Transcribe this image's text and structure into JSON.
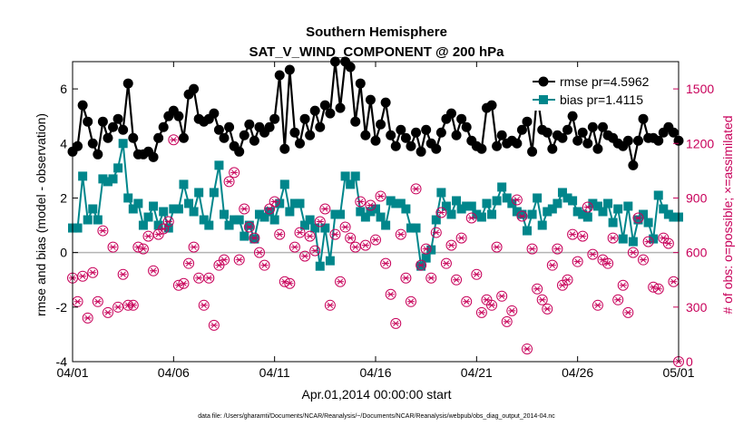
{
  "chart_data": {
    "type": "line",
    "title": "Southern Hemisphere",
    "subtitle": "SAT_V_WIND_COMPONENT @ 200 hPa",
    "xlabel": "Apr.01,2014 00:00:00 start",
    "ylabel": "rmse and bias (model - observation)",
    "y2label": "# of obs: o=possible; ×=assimilated",
    "footnote": "data file: /Users/gharamti/Documents/NCAR/Reanalysis/~/Documents/NCAR/Reanalysis/webpub/obs_diag_output_2014-04.nc",
    "x_tick_labels": [
      "04/01",
      "04/06",
      "04/11",
      "04/16",
      "04/21",
      "04/26",
      "05/01"
    ],
    "xlim": [
      0,
      30
    ],
    "ylim": [
      -4,
      7
    ],
    "y_ticks": [
      -4,
      -2,
      0,
      2,
      4,
      6
    ],
    "y2lim": [
      0,
      1650
    ],
    "y2_ticks": [
      0,
      300,
      600,
      900,
      1200,
      1500
    ],
    "grid": false,
    "legend_position": "top-right",
    "colors": {
      "rmse": "#000000",
      "bias": "#00868b",
      "obs": "#c8005a",
      "zero_line": "#b4b4b4"
    },
    "series": [
      {
        "name": "rmse pr=4.5962",
        "axis": "left",
        "x": [
          0,
          0.25,
          0.5,
          0.75,
          1,
          1.25,
          1.5,
          1.75,
          2,
          2.25,
          2.5,
          2.75,
          3,
          3.25,
          3.5,
          3.75,
          4,
          4.25,
          4.5,
          4.75,
          5,
          5.25,
          5.5,
          5.75,
          6,
          6.25,
          6.5,
          6.75,
          7,
          7.25,
          7.5,
          7.75,
          8,
          8.25,
          8.5,
          8.75,
          9,
          9.25,
          9.5,
          9.75,
          10,
          10.25,
          10.5,
          10.75,
          11,
          11.25,
          11.5,
          11.75,
          12,
          12.25,
          12.5,
          12.75,
          13,
          13.25,
          13.5,
          13.75,
          14,
          14.25,
          14.5,
          14.75,
          15,
          15.25,
          15.5,
          15.75,
          16,
          16.25,
          16.5,
          16.75,
          17,
          17.25,
          17.5,
          17.75,
          18,
          18.25,
          18.5,
          18.75,
          19,
          19.25,
          19.5,
          19.75,
          20,
          20.25,
          20.5,
          20.75,
          21,
          21.25,
          21.5,
          21.75,
          22,
          22.25,
          22.5,
          22.75,
          23,
          23.25,
          23.5,
          23.75,
          24,
          24.25,
          24.5,
          24.75,
          25,
          25.25,
          25.5,
          25.75,
          26,
          26.25,
          26.5,
          26.75,
          27,
          27.25,
          27.5,
          27.75,
          28,
          28.25,
          28.5,
          28.75,
          29,
          29.25,
          29.5,
          29.75,
          30
        ],
        "values": [
          3.7,
          3.9,
          5.4,
          4.8,
          4.0,
          3.6,
          4.8,
          4.2,
          4.6,
          4.9,
          4.5,
          6.2,
          4.2,
          3.6,
          3.6,
          3.7,
          3.5,
          4.2,
          4.6,
          5.0,
          5.2,
          5.0,
          4.2,
          5.8,
          6.0,
          4.9,
          4.8,
          4.9,
          5.1,
          4.5,
          4.2,
          4.6,
          3.9,
          3.7,
          4.3,
          4.7,
          4.1,
          4.6,
          4.4,
          4.6,
          4.9,
          6.5,
          3.8,
          6.7,
          4.4,
          4.0,
          4.9,
          4.3,
          5.2,
          4.6,
          5.4,
          5.1,
          7.0,
          5.3,
          7.0,
          6.8,
          4.8,
          6.2,
          4.3,
          5.6,
          4.1,
          4.7,
          5.5,
          4.3,
          3.9,
          4.5,
          4.2,
          3.9,
          4.4,
          3.7,
          4.5,
          4.0,
          3.8,
          4.4,
          4.9,
          5.1,
          4.3,
          4.9,
          4.6,
          4.1,
          3.9,
          3.8,
          5.3,
          5.4,
          3.9,
          4.3,
          4.0,
          4.1,
          4.0,
          4.5,
          4.8,
          3.7,
          5.8,
          4.5,
          4.4,
          3.8,
          4.3,
          4.2,
          4.5,
          5.0,
          4.1,
          4.4,
          4.0,
          4.6,
          3.8,
          4.6,
          4.3,
          4.2,
          4.0,
          3.9,
          4.1,
          3.2,
          4.1,
          4.9,
          4.2,
          4.2,
          4.1,
          4.4,
          4.6,
          4.4,
          4.1
        ]
      },
      {
        "name": "bias pr=1.4115",
        "axis": "left",
        "x": [
          0,
          0.25,
          0.5,
          0.75,
          1,
          1.25,
          1.5,
          1.75,
          2,
          2.25,
          2.5,
          2.75,
          3,
          3.25,
          3.5,
          3.75,
          4,
          4.25,
          4.5,
          4.75,
          5,
          5.25,
          5.5,
          5.75,
          6,
          6.25,
          6.5,
          6.75,
          7,
          7.25,
          7.5,
          7.75,
          8,
          8.25,
          8.5,
          8.75,
          9,
          9.25,
          9.5,
          9.75,
          10,
          10.25,
          10.5,
          10.75,
          11,
          11.25,
          11.5,
          11.75,
          12,
          12.25,
          12.5,
          12.75,
          13,
          13.25,
          13.5,
          13.75,
          14,
          14.25,
          14.5,
          14.75,
          15,
          15.25,
          15.5,
          15.75,
          16,
          16.25,
          16.5,
          16.75,
          17,
          17.25,
          17.5,
          17.75,
          18,
          18.25,
          18.5,
          18.75,
          19,
          19.25,
          19.5,
          19.75,
          20,
          20.25,
          20.5,
          20.75,
          21,
          21.25,
          21.5,
          21.75,
          22,
          22.25,
          22.5,
          22.75,
          23,
          23.25,
          23.5,
          23.75,
          24,
          24.25,
          24.5,
          24.75,
          25,
          25.25,
          25.5,
          25.75,
          26,
          26.25,
          26.5,
          26.75,
          27,
          27.25,
          27.5,
          27.75,
          28,
          28.25,
          28.5,
          28.75,
          29,
          29.25,
          29.5,
          29.75,
          30
        ],
        "values": [
          0.9,
          0.9,
          2.8,
          1.2,
          1.6,
          1.2,
          2.7,
          2.6,
          2.7,
          3.1,
          4.0,
          2.0,
          1.6,
          1.8,
          1.0,
          1.3,
          1.7,
          1.0,
          1.5,
          0.9,
          1.6,
          1.6,
          2.5,
          1.8,
          1.5,
          2.2,
          1.2,
          1.0,
          2.2,
          3.2,
          1.4,
          1.0,
          1.2,
          1.2,
          0.6,
          1.0,
          0.5,
          1.4,
          1.3,
          1.5,
          1.2,
          1.8,
          2.5,
          1.5,
          1.8,
          1.8,
          1.0,
          1.2,
          0.9,
          -0.5,
          0.9,
          -0.3,
          1.4,
          1.4,
          2.8,
          2.5,
          2.8,
          1.5,
          1.3,
          1.5,
          1.6,
          1.3,
          1.0,
          1.9,
          1.8,
          1.8,
          1.6,
          0.9,
          0.9,
          -0.5,
          -0.2,
          0.1,
          1.2,
          2.2,
          1.7,
          1.4,
          1.9,
          1.6,
          1.7,
          1.7,
          1.4,
          1.3,
          1.8,
          1.4,
          1.9,
          2.4,
          2.0,
          1.8,
          1.5,
          1.4,
          0.8,
          1.4,
          2.0,
          1.0,
          1.5,
          1.6,
          1.8,
          2.2,
          2.0,
          1.9,
          1.5,
          1.4,
          1.3,
          1.8,
          1.7,
          1.5,
          1.8,
          1.1,
          1.6,
          0.5,
          1.7,
          0.4,
          1.2,
          1.4,
          1.1,
          0.5,
          2.1,
          1.6,
          1.4,
          1.3,
          1.3
        ]
      },
      {
        "name": "# of obs",
        "axis": "right",
        "x": [
          0,
          0.25,
          0.5,
          0.75,
          1,
          1.25,
          1.5,
          1.75,
          2,
          2.25,
          2.5,
          2.75,
          3,
          3.25,
          3.5,
          3.75,
          4,
          4.25,
          4.5,
          4.75,
          5,
          5.25,
          5.5,
          5.75,
          6,
          6.25,
          6.5,
          6.75,
          7,
          7.25,
          7.5,
          7.75,
          8,
          8.25,
          8.5,
          8.75,
          9,
          9.25,
          9.5,
          9.75,
          10,
          10.25,
          10.5,
          10.75,
          11,
          11.25,
          11.5,
          11.75,
          12,
          12.25,
          12.5,
          12.75,
          13,
          13.25,
          13.5,
          13.75,
          14,
          14.25,
          14.5,
          14.75,
          15,
          15.25,
          15.5,
          15.75,
          16,
          16.25,
          16.5,
          16.75,
          17,
          17.25,
          17.5,
          17.75,
          18,
          18.25,
          18.5,
          18.75,
          19,
          19.25,
          19.5,
          19.75,
          20,
          20.25,
          20.5,
          20.75,
          21,
          21.25,
          21.5,
          21.75,
          22,
          22.25,
          22.5,
          22.75,
          23,
          23.25,
          23.5,
          23.75,
          24,
          24.25,
          24.5,
          24.75,
          25,
          25.25,
          25.5,
          25.75,
          26,
          26.25,
          26.5,
          26.75,
          27,
          27.25,
          27.5,
          27.75,
          28,
          28.25,
          28.5,
          28.75,
          29,
          29.25,
          29.5,
          29.75,
          30
        ],
        "values": [
          460,
          330,
          470,
          240,
          490,
          330,
          720,
          270,
          630,
          300,
          480,
          310,
          310,
          630,
          620,
          690,
          500,
          700,
          730,
          770,
          1220,
          420,
          430,
          540,
          630,
          460,
          310,
          460,
          200,
          530,
          560,
          990,
          1040,
          560,
          840,
          740,
          680,
          600,
          530,
          840,
          880,
          700,
          440,
          430,
          630,
          710,
          580,
          690,
          610,
          770,
          840,
          310,
          700,
          440,
          740,
          680,
          630,
          880,
          640,
          860,
          670,
          910,
          540,
          370,
          210,
          700,
          460,
          330,
          950,
          530,
          620,
          460,
          710,
          820,
          540,
          640,
          450,
          680,
          330,
          790,
          480,
          270,
          340,
          310,
          630,
          360,
          220,
          280,
          890,
          800,
          70,
          620,
          400,
          340,
          290,
          530,
          620,
          420,
          450,
          700,
          550,
          690,
          850,
          590,
          310,
          560,
          540,
          680,
          340,
          420,
          270,
          600,
          790,
          560,
          660,
          410,
          400,
          680,
          650,
          440,
          0
        ]
      }
    ]
  }
}
